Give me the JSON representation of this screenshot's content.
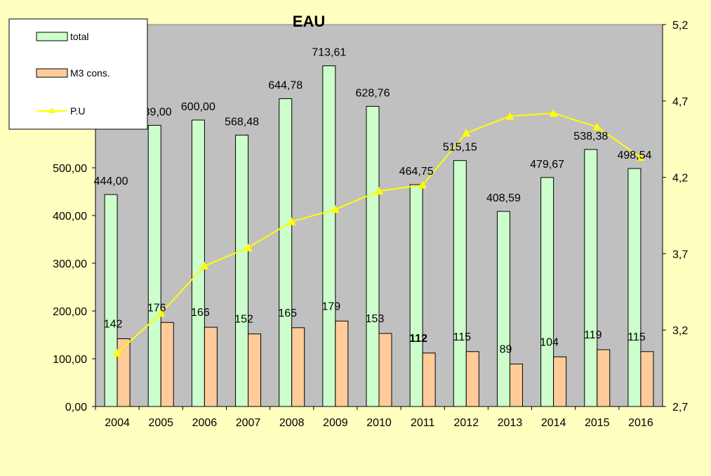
{
  "chart_data": {
    "type": "bar",
    "title": "EAU",
    "categories": [
      "2004",
      "2005",
      "2006",
      "2007",
      "2008",
      "2009",
      "2010",
      "2011",
      "2012",
      "2013",
      "2014",
      "2015",
      "2016"
    ],
    "series": [
      {
        "name": "total",
        "type": "bar",
        "axis": "left",
        "values": [
          444.0,
          589.0,
          600.0,
          568.48,
          644.78,
          713.61,
          628.76,
          464.75,
          515.15,
          408.59,
          479.67,
          538.38,
          498.54
        ],
        "labels": [
          "444,00",
          "589,00",
          "600,00",
          "568,48",
          "644,78",
          "713,61",
          "628,76",
          "464,75",
          "515,15",
          "408,59",
          "479,67",
          "538,38",
          "498,54"
        ],
        "color": "#ccffcc"
      },
      {
        "name": "M3 cons.",
        "type": "bar",
        "axis": "left",
        "values": [
          142,
          176,
          166,
          152,
          165,
          179,
          153,
          112,
          115,
          89,
          104,
          119,
          115
        ],
        "labels": [
          "142",
          "176",
          "166",
          "152",
          "165",
          "179",
          "153",
          "112",
          "115",
          "89",
          "104",
          "119",
          "115"
        ],
        "color": "#ffcc99"
      },
      {
        "name": "P.U",
        "type": "line",
        "axis": "right",
        "values": [
          3.05,
          3.31,
          3.62,
          3.74,
          3.91,
          3.99,
          4.11,
          4.15,
          4.49,
          4.6,
          4.62,
          4.53,
          4.33
        ],
        "color": "#ffff00"
      }
    ],
    "y_left": {
      "ylim": [
        0,
        800
      ],
      "ticks": [
        0,
        100,
        200,
        300,
        400,
        500
      ],
      "tick_labels": [
        "0,00",
        "100,00",
        "200,00",
        "300,00",
        "400,00",
        "500,00"
      ]
    },
    "y_right": {
      "ylim": [
        2.7,
        5.2
      ],
      "ticks": [
        2.7,
        3.2,
        3.7,
        4.2,
        4.7,
        5.2
      ],
      "tick_labels": [
        "2,7",
        "3,2",
        "3,7",
        "4,2",
        "4,7",
        "5,2"
      ]
    },
    "plot_background": "#c0c0c0",
    "grid": false,
    "legend_position": "top-left"
  }
}
